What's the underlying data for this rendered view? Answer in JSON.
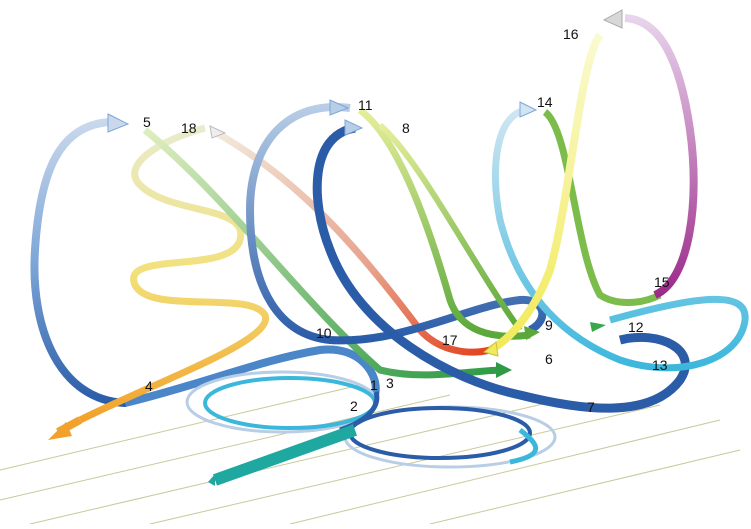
{
  "diagram": {
    "labels": {
      "l1": "1",
      "l2": "2",
      "l3": "3",
      "l4": "4",
      "l5": "5",
      "l6": "6",
      "l7": "7",
      "l8": "8",
      "l9": "9",
      "l10": "10",
      "l11": "11",
      "l12": "12",
      "l13": "13",
      "l14": "14",
      "l15": "15",
      "l16": "16",
      "l17": "17",
      "l18": "18"
    },
    "colors": {
      "grid": "#c9c99a",
      "blue_dark": "#2a5ca8",
      "blue_mid": "#4a86c8",
      "blue_light": "#b8cde6",
      "cyan": "#3cb7dc",
      "teal": "#1fa8a0",
      "green": "#3aa84a",
      "yellow_green": "#c8d860",
      "yellow": "#f2ea5a",
      "orange": "#f2a22a",
      "red": "#e2431e",
      "magenta": "#9c2a8a",
      "grey_arrow": "#d8d8d8"
    }
  }
}
